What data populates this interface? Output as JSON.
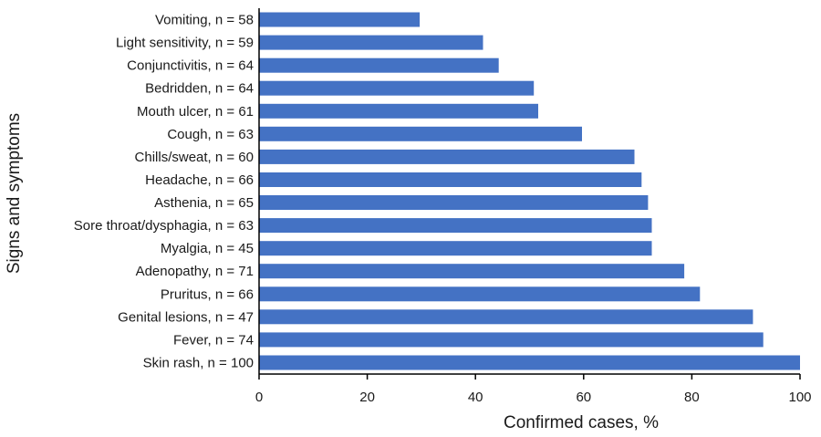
{
  "chart_data": {
    "type": "bar",
    "orientation": "horizontal",
    "categories": [
      "Vomiting, n = 58",
      "Light sensitivity, n = 59",
      "Conjunctivitis, n = 64",
      "Bedridden, n = 64",
      "Mouth ulcer, n = 61",
      "Cough, n = 63",
      "Chills/sweat, n = 60",
      "Headache, n = 66",
      "Asthenia, n = 65",
      "Sore throat/dysphagia, n = 63",
      "Myalgia, n = 45",
      "Adenopathy, n = 71",
      "Pruritus, n = 66",
      "Genital lesions, n = 47",
      "Fever, n = 74",
      "Skin rash, n = 100"
    ],
    "values": [
      29.7,
      41.4,
      44.3,
      50.8,
      51.6,
      59.7,
      69.4,
      70.7,
      71.9,
      72.6,
      72.6,
      78.6,
      81.5,
      91.3,
      93.2,
      100
    ],
    "xlabel": "Confirmed cases, %",
    "ylabel": "Signs and symptoms",
    "xlim": [
      0,
      100
    ],
    "xticks": [
      0,
      20,
      40,
      60,
      80,
      100
    ],
    "xtick_labels": [
      "0",
      "20",
      "40",
      "60",
      "80",
      "100"
    ],
    "bar_color": "#4472c4",
    "grid": false,
    "legend": "none"
  }
}
